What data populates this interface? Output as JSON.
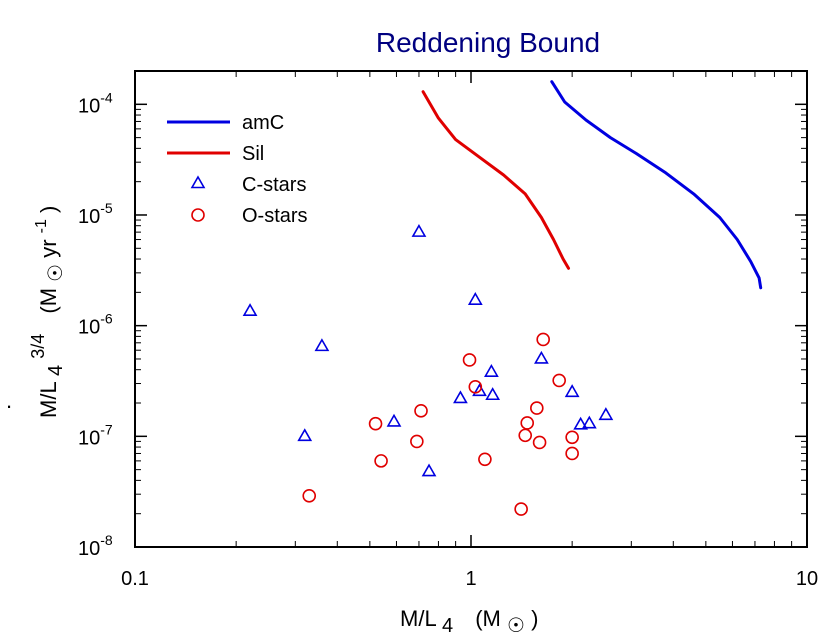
{
  "chart_data": {
    "type": "scatter",
    "title": "Reddening Bound",
    "xlabel": {
      "main": "M/L",
      "sub": "4",
      "units": "(M",
      "units_close": ")"
    },
    "ylabel": {
      "dot": ".",
      "main": "M/L",
      "sub": "4",
      "sup": "3/4",
      "units_open": "(M",
      "units_mid": " yr",
      "units_exp": "-1",
      "units_close": ")"
    },
    "xscale": "log",
    "yscale": "log",
    "xlim": [
      0.1,
      10
    ],
    "ylim": [
      1e-08,
      0.0002
    ],
    "xticks": [
      {
        "value": 0.1,
        "label": "0.1"
      },
      {
        "value": 1,
        "label": "1"
      },
      {
        "value": 10,
        "label": "10"
      }
    ],
    "yticks": [
      {
        "value": 1e-08,
        "base": "10",
        "exp": "-8"
      },
      {
        "value": 1e-07,
        "base": "10",
        "exp": "-7"
      },
      {
        "value": 1e-06,
        "base": "10",
        "exp": "-6"
      },
      {
        "value": 1e-05,
        "base": "10",
        "exp": "-5"
      },
      {
        "value": 0.0001,
        "base": "10",
        "exp": "-4"
      }
    ],
    "legend_position": "top-left",
    "colors": {
      "amC": "#0000e0",
      "Sil": "#e00000",
      "C-stars": "#0000e0",
      "O-stars": "#e00000",
      "title": "#000080"
    },
    "series": [
      {
        "name": "amC",
        "kind": "line",
        "color": "#0000e0",
        "points": [
          [
            1.74,
            0.00016
          ],
          [
            1.9,
            0.000105
          ],
          [
            2.2,
            7.2e-05
          ],
          [
            2.6,
            5e-05
          ],
          [
            3.1,
            3.6e-05
          ],
          [
            3.8,
            2.4e-05
          ],
          [
            4.6,
            1.55e-05
          ],
          [
            5.5,
            9.5e-06
          ],
          [
            6.2,
            6e-06
          ],
          [
            6.8,
            3.8e-06
          ],
          [
            7.2,
            2.7e-06
          ],
          [
            7.28,
            2.2e-06
          ]
        ]
      },
      {
        "name": "Sil",
        "kind": "line",
        "color": "#e00000",
        "points": [
          [
            0.72,
            0.00013
          ],
          [
            0.8,
            7.5e-05
          ],
          [
            0.9,
            4.8e-05
          ],
          [
            1.05,
            3.4e-05
          ],
          [
            1.25,
            2.3e-05
          ],
          [
            1.45,
            1.55e-05
          ],
          [
            1.62,
            9.5e-06
          ],
          [
            1.76,
            6e-06
          ],
          [
            1.88,
            4e-06
          ],
          [
            1.95,
            3.3e-06
          ]
        ]
      },
      {
        "name": "C-stars",
        "kind": "triangle",
        "color": "#0000e0",
        "points": [
          [
            0.22,
            1.35e-06
          ],
          [
            0.32,
            1e-07
          ],
          [
            0.36,
            6.5e-07
          ],
          [
            0.59,
            1.35e-07
          ],
          [
            0.7,
            7e-06
          ],
          [
            0.75,
            4.8e-08
          ],
          [
            0.93,
            2.2e-07
          ],
          [
            1.03,
            1.7e-06
          ],
          [
            1.06,
            2.55e-07
          ],
          [
            1.15,
            3.8e-07
          ],
          [
            1.16,
            2.35e-07
          ],
          [
            1.62,
            5e-07
          ],
          [
            2.0,
            2.5e-07
          ],
          [
            2.12,
            1.27e-07
          ],
          [
            2.25,
            1.3e-07
          ],
          [
            2.52,
            1.55e-07
          ]
        ]
      },
      {
        "name": "O-stars",
        "kind": "circle",
        "color": "#e00000",
        "points": [
          [
            0.33,
            2.9e-08
          ],
          [
            0.52,
            1.3e-07
          ],
          [
            0.54,
            6e-08
          ],
          [
            0.69,
            9e-08
          ],
          [
            0.71,
            1.7e-07
          ],
          [
            0.99,
            4.9e-07
          ],
          [
            1.03,
            2.8e-07
          ],
          [
            1.1,
            6.2e-08
          ],
          [
            1.41,
            2.2e-08
          ],
          [
            1.45,
            1.02e-07
          ],
          [
            1.47,
            1.32e-07
          ],
          [
            1.57,
            1.8e-07
          ],
          [
            1.6,
            8.8e-08
          ],
          [
            1.64,
            7.5e-07
          ],
          [
            1.83,
            3.2e-07
          ],
          [
            2.0,
            9.8e-08
          ],
          [
            2.0,
            7e-08
          ]
        ]
      }
    ]
  }
}
